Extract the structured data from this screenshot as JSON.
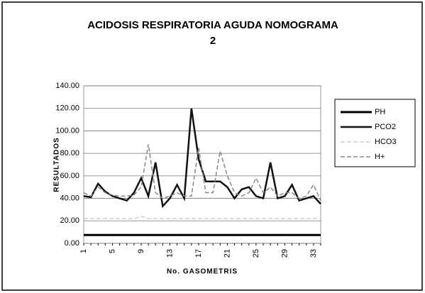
{
  "chart_data": {
    "type": "line",
    "title": "ACIDOSIS RESPIRATORIA AGUDA NOMOGRAMA",
    "subtitle": "2",
    "x_label": "No. GASOMETRIS",
    "y_label": "RESULTADOS",
    "categories": [
      "1",
      null,
      null,
      null,
      "5",
      null,
      null,
      null,
      "9",
      null,
      null,
      null,
      "13",
      null,
      null,
      null,
      "17",
      null,
      null,
      null,
      "21",
      null,
      null,
      null,
      "25",
      null,
      null,
      null,
      "29",
      null,
      null,
      null,
      "33",
      null
    ],
    "series": [
      {
        "name": "PH",
        "color": "#000000",
        "width": 3,
        "dashed": false,
        "values": [
          7.4,
          7.4,
          7.4,
          7.4,
          7.4,
          7.4,
          7.4,
          7.4,
          7.4,
          7.4,
          7.4,
          7.4,
          7.4,
          7.4,
          7.4,
          7.4,
          7.4,
          7.4,
          7.4,
          7.4,
          7.4,
          7.4,
          7.4,
          7.4,
          7.4,
          7.4,
          7.4,
          7.4,
          7.4,
          7.4,
          7.4,
          7.4,
          7.4,
          7.4
        ]
      },
      {
        "name": "PCO2",
        "color": "#111111",
        "width": 2.5,
        "dashed": false,
        "values": [
          42,
          41,
          53,
          46,
          42,
          40,
          38,
          45,
          58,
          42,
          72,
          33,
          40,
          52,
          40,
          120,
          75,
          55,
          55,
          55,
          50,
          40,
          48,
          50,
          42,
          40,
          72,
          40,
          42,
          52,
          38,
          40,
          42,
          35
        ]
      },
      {
        "name": "HCO3",
        "color": "#bbbbbb",
        "width": 1,
        "dashed": true,
        "values": [
          22,
          22,
          22,
          22,
          22,
          22,
          22,
          22,
          24,
          22,
          22,
          22,
          22,
          22,
          22,
          22,
          22,
          22,
          22,
          22,
          22,
          22,
          22,
          22,
          22,
          22,
          22,
          22,
          22,
          22,
          22,
          22,
          22,
          22
        ]
      },
      {
        "name": "H+",
        "color": "#888888",
        "width": 1.5,
        "dashed": true,
        "values": [
          45,
          42,
          50,
          45,
          43,
          42,
          42,
          43,
          50,
          88,
          45,
          40,
          42,
          45,
          42,
          42,
          85,
          45,
          45,
          82,
          60,
          45,
          42,
          45,
          58,
          45,
          50,
          42,
          45,
          45,
          40,
          42,
          52,
          38
        ]
      }
    ],
    "ylim": [
      0,
      140
    ],
    "yticks": [
      {
        "value": 0,
        "label": "0.00"
      },
      {
        "value": 20,
        "label": "20.00"
      },
      {
        "value": 40,
        "label": "40.00"
      },
      {
        "value": 60,
        "label": "60.00"
      },
      {
        "value": 80,
        "label": "80.00"
      },
      {
        "value": 100,
        "label": "100.00"
      },
      {
        "value": 120,
        "label": "120.00"
      },
      {
        "value": 140,
        "label": "140.00"
      }
    ],
    "grid": true,
    "legend": "right"
  }
}
